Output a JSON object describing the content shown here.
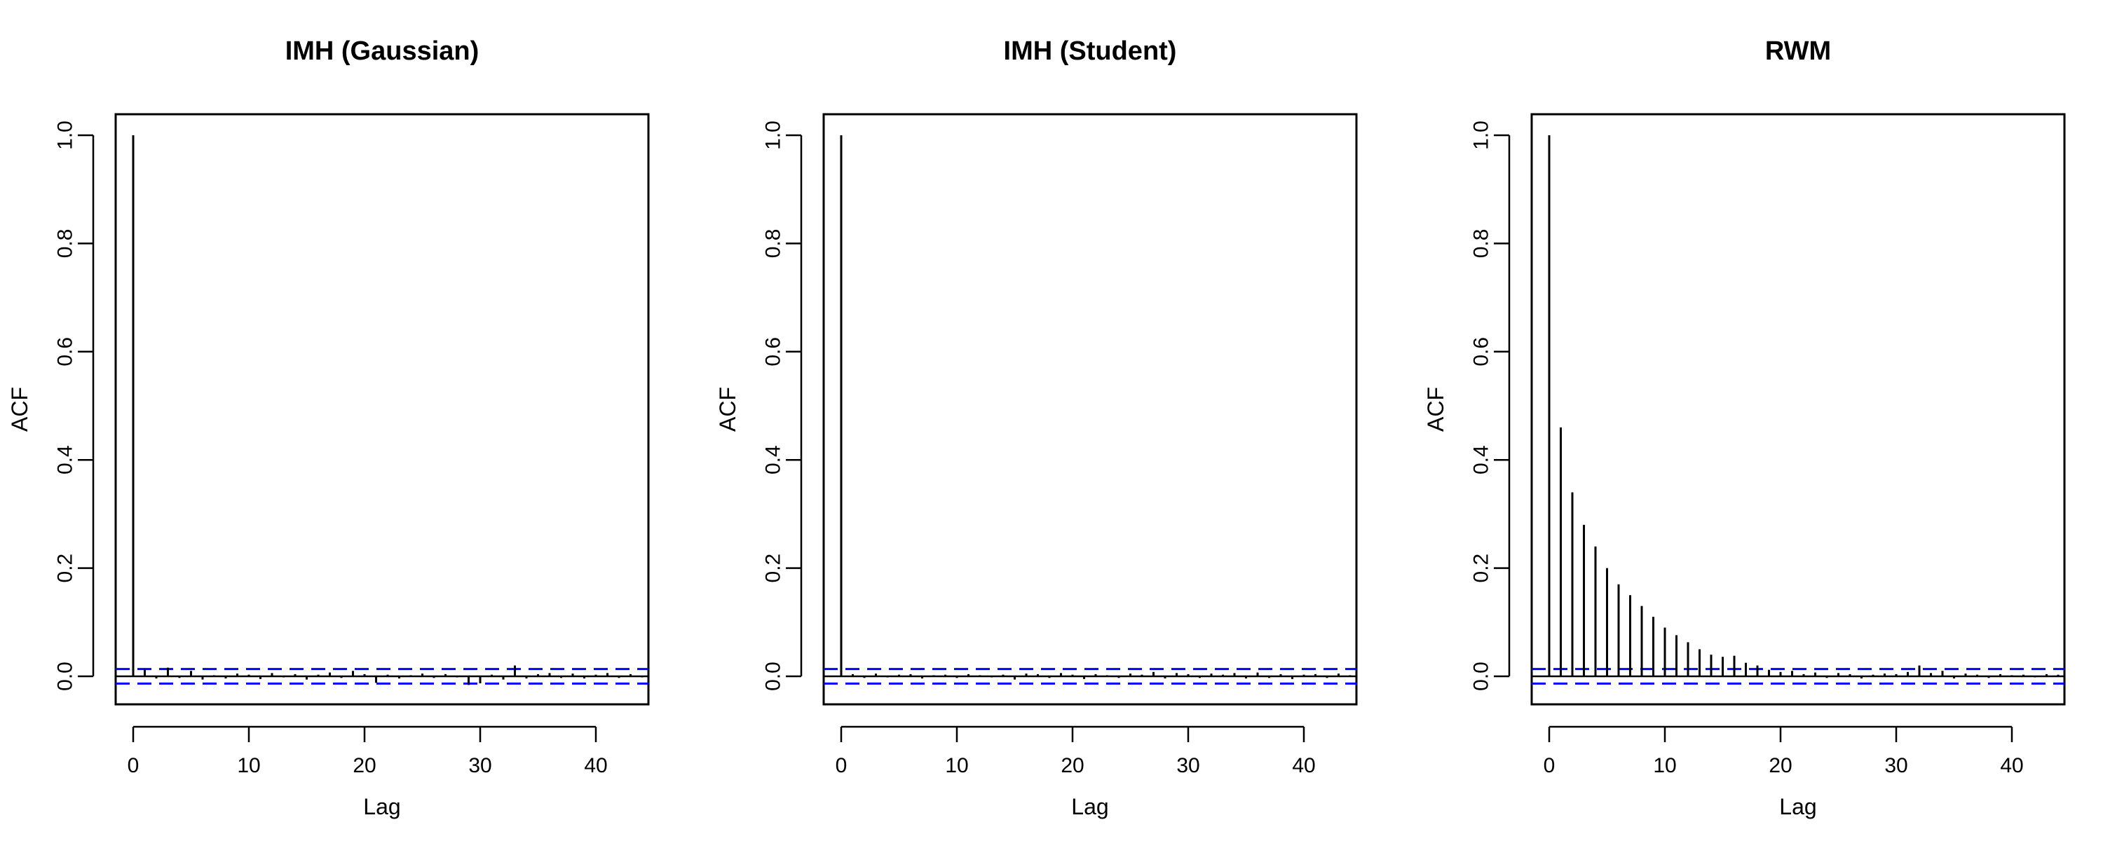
{
  "chart_data": [
    {
      "type": "bar",
      "title": "IMH (Gaussian)",
      "xlabel": "Lag",
      "ylabel": "ACF",
      "xlim": [
        0,
        44
      ],
      "ylim": [
        -0.05,
        1.0
      ],
      "x_ticks": [
        0,
        10,
        20,
        30,
        40
      ],
      "y_ticks": [
        0.0,
        0.2,
        0.4,
        0.6,
        0.8,
        1.0
      ],
      "x_tick_labels": [
        "0",
        "10",
        "20",
        "30",
        "40"
      ],
      "y_tick_labels": [
        "0.0",
        "0.2",
        "0.4",
        "0.6",
        "0.8",
        "1.0"
      ],
      "confidence_bound": 0.0135,
      "lags": [
        0,
        1,
        2,
        3,
        4,
        5,
        6,
        7,
        8,
        9,
        10,
        11,
        12,
        13,
        14,
        15,
        16,
        17,
        18,
        19,
        20,
        21,
        22,
        23,
        24,
        25,
        26,
        27,
        28,
        29,
        30,
        31,
        32,
        33,
        34,
        35,
        36,
        37,
        38,
        39,
        40,
        41,
        42,
        43,
        44
      ],
      "values": [
        1.0,
        0.012,
        -0.004,
        0.016,
        -0.003,
        0.01,
        -0.006,
        0.002,
        -0.004,
        0.005,
        0.003,
        -0.005,
        0.006,
        -0.002,
        0.004,
        -0.006,
        0.003,
        0.007,
        -0.003,
        0.01,
        0.004,
        -0.012,
        0.003,
        -0.004,
        0.002,
        0.005,
        -0.003,
        0.004,
        -0.002,
        -0.016,
        -0.013,
        0.003,
        -0.006,
        0.02,
        -0.004,
        0.004,
        0.006,
        -0.003,
        0.005,
        -0.004,
        0.003,
        0.006,
        -0.003,
        0.004,
        -0.002
      ]
    },
    {
      "type": "bar",
      "title": "IMH (Student)",
      "xlabel": "Lag",
      "ylabel": "ACF",
      "xlim": [
        0,
        44
      ],
      "ylim": [
        -0.05,
        1.0
      ],
      "x_ticks": [
        0,
        10,
        20,
        30,
        40
      ],
      "y_ticks": [
        0.0,
        0.2,
        0.4,
        0.6,
        0.8,
        1.0
      ],
      "x_tick_labels": [
        "0",
        "10",
        "20",
        "30",
        "40"
      ],
      "y_tick_labels": [
        "0.0",
        "0.2",
        "0.4",
        "0.6",
        "0.8",
        "1.0"
      ],
      "confidence_bound": 0.0135,
      "lags": [
        0,
        1,
        2,
        3,
        4,
        5,
        6,
        7,
        8,
        9,
        10,
        11,
        12,
        13,
        14,
        15,
        16,
        17,
        18,
        19,
        20,
        21,
        22,
        23,
        24,
        25,
        26,
        27,
        28,
        29,
        30,
        31,
        32,
        33,
        34,
        35,
        36,
        37,
        38,
        39,
        40,
        41,
        42,
        43,
        44
      ],
      "values": [
        1.0,
        0.004,
        -0.003,
        0.005,
        -0.002,
        0.003,
        0.004,
        -0.004,
        0.002,
        0.003,
        -0.003,
        0.004,
        0.002,
        -0.002,
        0.003,
        -0.006,
        0.005,
        0.004,
        -0.003,
        0.006,
        0.003,
        -0.005,
        0.004,
        0.002,
        -0.003,
        0.005,
        0.003,
        0.008,
        -0.004,
        0.006,
        0.004,
        -0.003,
        0.005,
        0.003,
        0.006,
        -0.004,
        0.007,
        -0.003,
        0.004,
        -0.005,
        0.003,
        0.004,
        -0.003,
        0.005,
        0.002
      ]
    },
    {
      "type": "bar",
      "title": "RWM",
      "xlabel": "Lag",
      "ylabel": "ACF",
      "xlim": [
        0,
        44
      ],
      "ylim": [
        -0.05,
        1.0
      ],
      "x_ticks": [
        0,
        10,
        20,
        30,
        40
      ],
      "y_ticks": [
        0.0,
        0.2,
        0.4,
        0.6,
        0.8,
        1.0
      ],
      "x_tick_labels": [
        "0",
        "10",
        "20",
        "30",
        "40"
      ],
      "y_tick_labels": [
        "0.0",
        "0.2",
        "0.4",
        "0.6",
        "0.8",
        "1.0"
      ],
      "confidence_bound": 0.0135,
      "lags": [
        0,
        1,
        2,
        3,
        4,
        5,
        6,
        7,
        8,
        9,
        10,
        11,
        12,
        13,
        14,
        15,
        16,
        17,
        18,
        19,
        20,
        21,
        22,
        23,
        24,
        25,
        26,
        27,
        28,
        29,
        30,
        31,
        32,
        33,
        34,
        35,
        36,
        37,
        38,
        39,
        40,
        41,
        42,
        43,
        44
      ],
      "values": [
        1.0,
        0.46,
        0.34,
        0.28,
        0.24,
        0.2,
        0.17,
        0.15,
        0.13,
        0.11,
        0.09,
        0.076,
        0.063,
        0.05,
        0.04,
        0.036,
        0.038,
        0.025,
        0.02,
        0.012,
        0.008,
        0.01,
        0.004,
        0.007,
        -0.003,
        0.006,
        0.004,
        -0.004,
        0.003,
        0.005,
        0.004,
        0.008,
        0.02,
        0.006,
        0.01,
        -0.004,
        0.005,
        0.003,
        -0.003,
        0.004,
        0.002,
        0.003,
        -0.002,
        0.004,
        0.003
      ]
    }
  ]
}
